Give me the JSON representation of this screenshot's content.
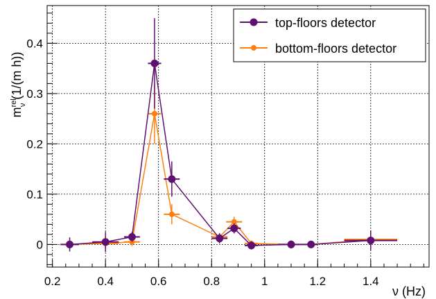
{
  "chart_data": {
    "type": "scatter",
    "xlabel": "ν (Hz)",
    "ylabel": {
      "main": "m",
      "sup": "rel",
      "sub": "ν",
      "unit": " (1/(m h))"
    },
    "xlim": [
      0.18,
      1.62
    ],
    "ylim": [
      -0.045,
      0.475
    ],
    "xticks": [
      0.2,
      0.4,
      0.6,
      0.8,
      1.0,
      1.2,
      1.4
    ],
    "xtick_labels": [
      "0.2",
      "0.4",
      "0.6",
      "0.8",
      "1",
      "1.2",
      "1.4"
    ],
    "yticks": [
      0.0,
      0.1,
      0.2,
      0.3,
      0.4
    ],
    "ytick_labels": [
      "0",
      "0.1",
      "0.2",
      "0.3",
      "0.4"
    ],
    "grid": true,
    "legend_position": "top-right",
    "series": [
      {
        "name": "top-floors detector",
        "color": "#5e1070",
        "marker": "circle",
        "points": [
          {
            "x": 0.265,
            "y": 0.0,
            "xerr": 0.035,
            "yerr": 0.014
          },
          {
            "x": 0.4,
            "y": 0.005,
            "xerr": 0.05,
            "yerr": 0.02
          },
          {
            "x": 0.5,
            "y": 0.015,
            "xerr": 0.03,
            "yerr": 0.01
          },
          {
            "x": 0.585,
            "y": 0.36,
            "xerr": 0.025,
            "yerr": 0.09
          },
          {
            "x": 0.65,
            "y": 0.13,
            "xerr": 0.03,
            "yerr": 0.035
          },
          {
            "x": 0.83,
            "y": 0.012,
            "xerr": 0.03,
            "yerr": 0.01
          },
          {
            "x": 0.885,
            "y": 0.032,
            "xerr": 0.025,
            "yerr": 0.01
          },
          {
            "x": 0.95,
            "y": -0.002,
            "xerr": 0.025,
            "yerr": 0.008
          },
          {
            "x": 1.1,
            "y": 0.0,
            "xerr": 0.05,
            "yerr": 0.008
          },
          {
            "x": 1.175,
            "y": 0.0,
            "xerr": 0.025,
            "yerr": 0.005
          },
          {
            "x": 1.4,
            "y": 0.008,
            "xerr": 0.1,
            "yerr": 0.02
          }
        ]
      },
      {
        "name": "bottom-floors detector",
        "color": "#ff7f0e",
        "marker": "circle",
        "points": [
          {
            "x": 0.265,
            "y": 0.0,
            "xerr": 0.035,
            "yerr": 0.008
          },
          {
            "x": 0.4,
            "y": 0.002,
            "xerr": 0.05,
            "yerr": 0.008
          },
          {
            "x": 0.5,
            "y": 0.005,
            "xerr": 0.03,
            "yerr": 0.008
          },
          {
            "x": 0.585,
            "y": 0.26,
            "xerr": 0.025,
            "yerr": 0.06
          },
          {
            "x": 0.65,
            "y": 0.06,
            "xerr": 0.03,
            "yerr": 0.02
          },
          {
            "x": 0.83,
            "y": 0.015,
            "xerr": 0.03,
            "yerr": 0.008
          },
          {
            "x": 0.885,
            "y": 0.045,
            "xerr": 0.03,
            "yerr": 0.01
          },
          {
            "x": 0.95,
            "y": 0.002,
            "xerr": 0.025,
            "yerr": 0.006
          },
          {
            "x": 1.1,
            "y": 0.0,
            "xerr": 0.05,
            "yerr": 0.006
          },
          {
            "x": 1.175,
            "y": 0.0,
            "xerr": 0.025,
            "yerr": 0.004
          },
          {
            "x": 1.4,
            "y": 0.01,
            "xerr": 0.1,
            "yerr": 0.018
          }
        ]
      }
    ]
  }
}
